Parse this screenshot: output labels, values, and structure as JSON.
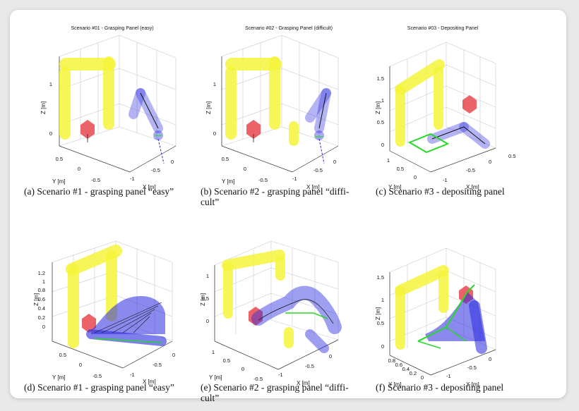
{
  "panels": [
    {
      "id": "a",
      "plot_title": "Scenario #01 - Grasping Panel (easy)",
      "caption": "(a)  Scenario #1 - grasping panel “easy”",
      "z_ticks": [
        "0",
        "1"
      ],
      "y_ticks": [
        "0.5",
        "0",
        "-0.5"
      ],
      "x_ticks": [
        "-1",
        "-0.5",
        "0"
      ],
      "z_label": "Z [m]",
      "y_label": "Y [m]",
      "x_label": "X [m]"
    },
    {
      "id": "b",
      "plot_title": "Scenario #02 - Grasping Panel (difficult)",
      "caption": "(b)  Scenario #2 - grasping panel “diffi- cult”",
      "z_ticks": [
        "0",
        "1"
      ],
      "y_ticks": [
        "0.5",
        "0",
        "-0.5"
      ],
      "x_ticks": [
        "-1",
        "-0.5",
        "0"
      ],
      "z_label": "Z [m]",
      "y_label": "Y [m]",
      "x_label": "X [m]"
    },
    {
      "id": "c",
      "plot_title": "Scenario #03 - Depositing Panel",
      "caption": "(c)  Scenario #3 - depositing panel",
      "z_ticks": [
        "0",
        "0.5",
        "1",
        "1.5"
      ],
      "y_ticks": [
        "1",
        "0.5",
        "0"
      ],
      "x_ticks": [
        "-1",
        "-0.5",
        "0",
        "0.5"
      ],
      "z_label": "Z [m]",
      "y_label": "Y [m]",
      "x_label": "X [m]"
    },
    {
      "id": "d",
      "plot_title": "",
      "caption": "(d)  Scenario #1 - grasping panel “easy”",
      "z_ticks": [
        "0",
        "0.2",
        "0.4",
        "0.6",
        "0.8",
        "1",
        "1.2"
      ],
      "y_ticks": [
        "0.5",
        "0",
        "-0.5"
      ],
      "x_ticks": [
        "-1",
        "-0.5",
        "0"
      ],
      "z_label": "Z [m]",
      "y_label": "Y [m]",
      "x_label": "X [m]"
    },
    {
      "id": "e",
      "plot_title": "",
      "caption": "(e)  Scenario #2 - grasping panel “diffi- cult”",
      "z_ticks": [
        "0",
        "0.5",
        "1"
      ],
      "y_ticks": [
        "1",
        "0.5",
        "0",
        "-0.5"
      ],
      "x_ticks": [
        "-1",
        "-0.5",
        "0"
      ],
      "z_label": "Z [m]",
      "y_label": "Y [m]",
      "x_label": "X [m]"
    },
    {
      "id": "f",
      "plot_title": "",
      "caption": "(f)  Scenario #3 - depositing panel",
      "z_ticks": [
        "0",
        "0.5",
        "1",
        "1.5"
      ],
      "y_ticks": [
        "0.8",
        "0.6",
        "0.4",
        "0.2",
        "0"
      ],
      "x_ticks": [
        "-1",
        "-0.5",
        "0"
      ],
      "z_label": "Z [m]",
      "y_label": "Y [m]",
      "x_label": "X [m]"
    }
  ],
  "colors": {
    "frame_yellow": "#f5f53c",
    "box_red": "#e8484e",
    "arm_blue": "#2a2ae0",
    "panel_green": "#28d828"
  }
}
